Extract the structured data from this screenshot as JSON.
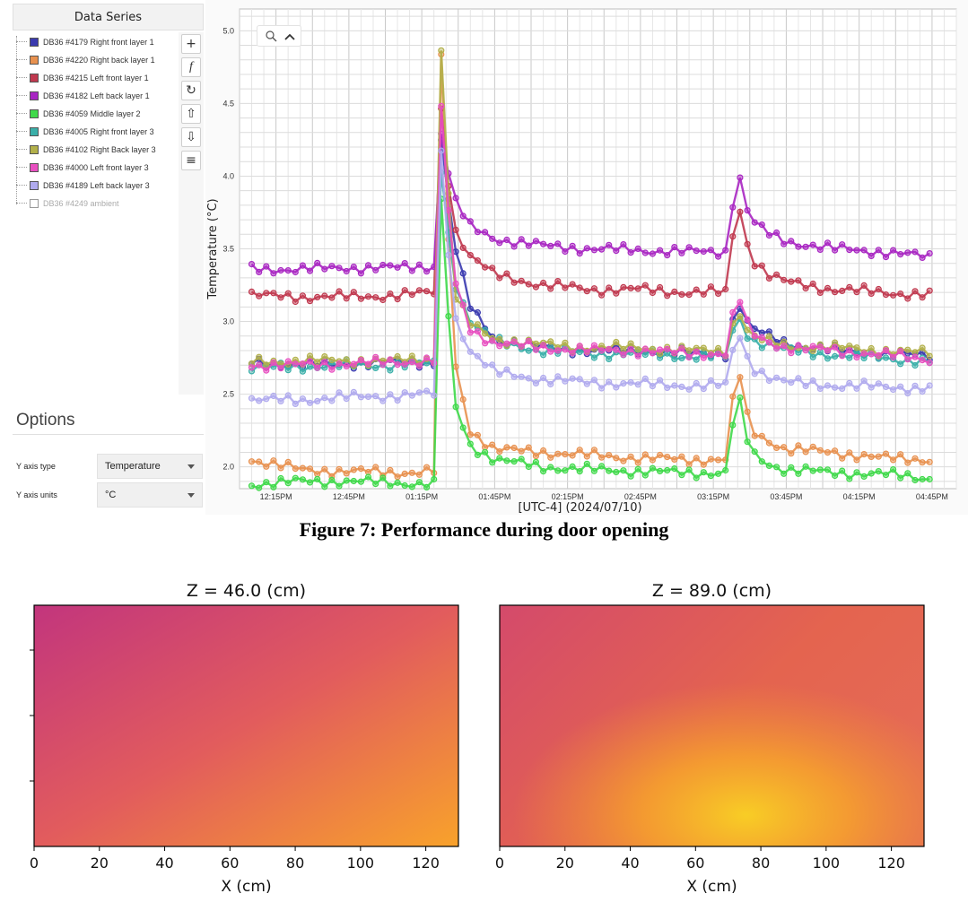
{
  "panel": {
    "header": "Data Series",
    "series": [
      {
        "label": "DB36 #4179 Right front layer 1",
        "color": "#3a3aaf",
        "enabled": true
      },
      {
        "label": "DB36 #4220 Right back layer 1",
        "color": "#e8914f",
        "enabled": true
      },
      {
        "label": "DB36 #4215 Left front layer 1",
        "color": "#c0394f",
        "enabled": true
      },
      {
        "label": "DB36 #4182 Left back layer 1",
        "color": "#a826c2",
        "enabled": true
      },
      {
        "label": "DB36 #4059 Middle layer 2",
        "color": "#3fd94a",
        "enabled": true
      },
      {
        "label": "DB36 #4005 Right front layer 3",
        "color": "#3aafa9",
        "enabled": true
      },
      {
        "label": "DB36 #4102 Right Back layer 3",
        "color": "#b2b04a",
        "enabled": true
      },
      {
        "label": "DB36 #4000 Left front layer 3",
        "color": "#e84fc0",
        "enabled": true
      },
      {
        "label": "DB36 #4189 Left back layer 3",
        "color": "#b0aaee",
        "enabled": true
      },
      {
        "label": "DB36 #4249 ambient",
        "color": "#ffffff",
        "enabled": false
      }
    ],
    "tools": [
      {
        "name": "add-icon",
        "glyph": "+"
      },
      {
        "name": "function-icon",
        "glyph": "f"
      },
      {
        "name": "refresh-icon",
        "glyph": "↻"
      },
      {
        "name": "move-up-icon",
        "glyph": "⇧"
      },
      {
        "name": "move-down-icon",
        "glyph": "⇩"
      },
      {
        "name": "list-icon",
        "glyph": "≡"
      }
    ],
    "options_title": "Options",
    "y_axis_type_label": "Y axis type",
    "y_axis_type_value": "Temperature",
    "y_axis_units_label": "Y axis units",
    "y_axis_units_value": "°C"
  },
  "figure7_caption": "Figure 7: Performance during door opening",
  "chart_data": [
    {
      "type": "line",
      "title": "",
      "ylabel": "Temperature (°C)",
      "xlabel": "[UTC-4]  (2024/07/10)",
      "x_tick_labels": [
        "12:15PM",
        "12:45PM",
        "01:15PM",
        "01:45PM",
        "02:15PM",
        "02:45PM",
        "03:15PM",
        "03:45PM",
        "04:15PM",
        "04:45PM"
      ],
      "y_ticks": [
        2.0,
        2.5,
        3.0,
        3.5,
        4.0,
        4.5,
        5.0
      ],
      "ylim": [
        1.85,
        5.15
      ],
      "x": [
        "12:05PM",
        "12:25PM",
        "12:45PM",
        "01:05PM",
        "01:20PM",
        "01:23PM",
        "01:28PM",
        "01:35PM",
        "01:45PM",
        "02:05PM",
        "02:25PM",
        "02:45PM",
        "03:05PM",
        "03:20PM",
        "03:25PM",
        "03:30PM",
        "03:38PM",
        "03:45PM",
        "04:05PM",
        "04:25PM",
        "04:45PM"
      ],
      "series": [
        {
          "name": "DB36 #4179 Right front layer 1",
          "color": "#3a3aaf",
          "values": [
            2.72,
            2.7,
            2.71,
            2.72,
            2.72,
            4.25,
            3.55,
            3.1,
            2.88,
            2.82,
            2.8,
            2.8,
            2.78,
            2.78,
            3.15,
            2.95,
            2.9,
            2.85,
            2.8,
            2.78,
            2.76
          ]
        },
        {
          "name": "DB36 #4220 Right back layer 1",
          "color": "#e8914f",
          "values": [
            2.05,
            1.98,
            1.97,
            1.96,
            1.97,
            4.8,
            2.75,
            2.25,
            2.12,
            2.1,
            2.08,
            2.06,
            2.05,
            2.05,
            2.72,
            2.25,
            2.18,
            2.12,
            2.1,
            2.06,
            2.05
          ]
        },
        {
          "name": "DB36 #4215 Left front layer 1",
          "color": "#c0394f",
          "values": [
            3.18,
            3.17,
            3.17,
            3.18,
            3.2,
            4.45,
            3.65,
            3.45,
            3.32,
            3.25,
            3.22,
            3.22,
            3.2,
            3.2,
            3.85,
            3.45,
            3.32,
            3.27,
            3.22,
            3.2,
            3.18
          ]
        },
        {
          "name": "DB36 #4182 Left back layer 1",
          "color": "#a826c2",
          "values": [
            3.36,
            3.36,
            3.37,
            3.37,
            3.38,
            4.3,
            3.85,
            3.65,
            3.57,
            3.52,
            3.5,
            3.49,
            3.48,
            3.48,
            4.05,
            3.7,
            3.6,
            3.55,
            3.5,
            3.48,
            3.44
          ]
        },
        {
          "name": "DB36 #4059 Middle layer 2",
          "color": "#3fd94a",
          "values": [
            1.88,
            1.9,
            1.9,
            1.89,
            1.88,
            3.85,
            2.45,
            2.15,
            2.05,
            2.0,
            1.98,
            1.97,
            1.96,
            1.96,
            2.52,
            2.1,
            2.02,
            1.98,
            1.96,
            1.95,
            1.92
          ]
        },
        {
          "name": "DB36 #4005 Right front layer 3",
          "color": "#3aafa9",
          "values": [
            2.68,
            2.69,
            2.7,
            2.7,
            2.71,
            4.05,
            3.3,
            3.0,
            2.86,
            2.8,
            2.78,
            2.78,
            2.76,
            2.76,
            3.05,
            2.88,
            2.84,
            2.8,
            2.77,
            2.75,
            2.72
          ]
        },
        {
          "name": "DB36 #4102 Right Back layer 3",
          "color": "#b2b04a",
          "values": [
            2.72,
            2.73,
            2.73,
            2.73,
            2.74,
            4.88,
            3.2,
            2.98,
            2.88,
            2.84,
            2.82,
            2.82,
            2.8,
            2.8,
            3.1,
            2.9,
            2.86,
            2.83,
            2.82,
            2.8,
            2.78
          ]
        },
        {
          "name": "DB36 #4000 Left front layer 3",
          "color": "#e84fc0",
          "values": [
            2.7,
            2.7,
            2.71,
            2.72,
            2.73,
            4.45,
            3.3,
            2.95,
            2.85,
            2.82,
            2.8,
            2.8,
            2.78,
            2.78,
            3.2,
            2.92,
            2.86,
            2.82,
            2.8,
            2.77,
            2.74
          ]
        },
        {
          "name": "DB36 #4189 Left back layer 3",
          "color": "#b0aaee",
          "values": [
            2.46,
            2.46,
            2.48,
            2.49,
            2.5,
            4.15,
            3.05,
            2.8,
            2.65,
            2.6,
            2.58,
            2.57,
            2.56,
            2.56,
            2.95,
            2.7,
            2.62,
            2.58,
            2.56,
            2.55,
            2.54
          ]
        }
      ],
      "grid": true
    },
    {
      "type": "heatmap",
      "title": "Z = 46.0 (cm)",
      "xlabel": "X (cm)",
      "x_ticks": [
        0,
        20,
        40,
        60,
        80,
        100,
        120
      ],
      "xlim": [
        0,
        130
      ],
      "colormap": "plasma",
      "corner_colors": {
        "top_left": "#c2357d",
        "top_right": "#e0575f",
        "bottom_left": "#e25a5c",
        "bottom_right": "#f8a22b"
      }
    },
    {
      "type": "heatmap",
      "title": "Z = 89.0 (cm)",
      "xlabel": "X (cm)",
      "x_ticks": [
        0,
        20,
        40,
        60,
        80,
        100,
        120
      ],
      "xlim": [
        0,
        130
      ],
      "colormap": "plasma",
      "corner_colors": {
        "top_left": "#d44a6b",
        "top_right": "#e56a56",
        "bottom_left": "#d64b69",
        "hotspot": "#f8cd25"
      }
    }
  ]
}
